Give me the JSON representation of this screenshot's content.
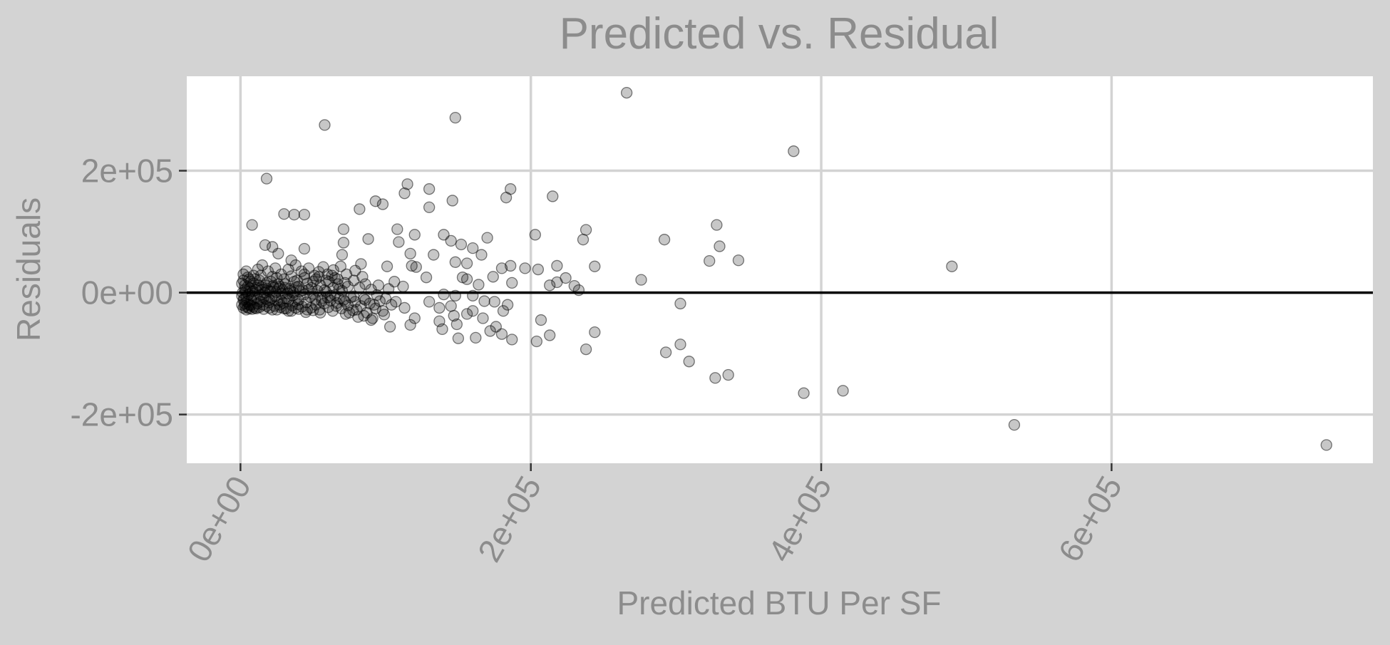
{
  "chart_data": {
    "type": "scatter",
    "title": "Predicted vs. Residual",
    "xlabel": "Predicted BTU Per SF",
    "ylabel": "Residuals",
    "xlim": [
      -37000,
      780000
    ],
    "ylim": [
      -280000,
      355000
    ],
    "x_ticks": [
      0,
      200000,
      400000,
      600000
    ],
    "x_tick_labels": [
      "0e+00",
      "2e+05",
      "4e+05",
      "6e+05"
    ],
    "y_ticks": [
      -200000,
      0,
      200000
    ],
    "y_tick_labels": [
      "-2e+05",
      "0e+00",
      "2e+05"
    ],
    "reference_line_y": 0,
    "grid": true,
    "colors": {
      "background": "#d3d3d3",
      "panel": "#ffffff",
      "grid": "#d3d3d3",
      "text": "#8c8c8c",
      "point_fill": "rgba(0,0,0,0.22)",
      "point_stroke": "rgba(0,0,0,0.5)",
      "zero_line": "#000000"
    },
    "points": [
      [
        266000,
        328000
      ],
      [
        148000,
        287000
      ],
      [
        58000,
        275000
      ],
      [
        381000,
        232000
      ],
      [
        18000,
        187000
      ],
      [
        115000,
        178000
      ],
      [
        113000,
        163000
      ],
      [
        130000,
        170000
      ],
      [
        186000,
        170000
      ],
      [
        215000,
        158000
      ],
      [
        183000,
        156000
      ],
      [
        93000,
        150000
      ],
      [
        146000,
        151000
      ],
      [
        98000,
        145000
      ],
      [
        130000,
        140000
      ],
      [
        82000,
        137000
      ],
      [
        30000,
        129000
      ],
      [
        37000,
        128000
      ],
      [
        44000,
        128000
      ],
      [
        8000,
        111000
      ],
      [
        71000,
        104000
      ],
      [
        108000,
        104000
      ],
      [
        328000,
        111000
      ],
      [
        203000,
        95000
      ],
      [
        120000,
        95000
      ],
      [
        140000,
        95000
      ],
      [
        145000,
        85000
      ],
      [
        170000,
        90000
      ],
      [
        236000,
        87000
      ],
      [
        238000,
        103000
      ],
      [
        292000,
        87000
      ],
      [
        152000,
        79000
      ],
      [
        160000,
        73000
      ],
      [
        17000,
        78000
      ],
      [
        22000,
        75000
      ],
      [
        44000,
        72000
      ],
      [
        71000,
        82000
      ],
      [
        88000,
        88000
      ],
      [
        109000,
        83000
      ],
      [
        330000,
        76000
      ],
      [
        26000,
        64000
      ],
      [
        70000,
        62000
      ],
      [
        117000,
        64000
      ],
      [
        133000,
        62000
      ],
      [
        166000,
        62000
      ],
      [
        244000,
        43000
      ],
      [
        35000,
        53000
      ],
      [
        69000,
        43000
      ],
      [
        83000,
        47000
      ],
      [
        101000,
        43000
      ],
      [
        118000,
        44000
      ],
      [
        148000,
        50000
      ],
      [
        156000,
        48000
      ],
      [
        186000,
        44000
      ],
      [
        218000,
        44000
      ],
      [
        343000,
        53000
      ],
      [
        323000,
        52000
      ],
      [
        490000,
        43000
      ],
      [
        121000,
        42000
      ],
      [
        196000,
        40000
      ],
      [
        205000,
        38000
      ],
      [
        180000,
        40000
      ],
      [
        64000,
        37000
      ],
      [
        54000,
        34000
      ],
      [
        44000,
        30000
      ],
      [
        153000,
        25000
      ],
      [
        174000,
        26000
      ],
      [
        224000,
        24000
      ],
      [
        276000,
        21000
      ],
      [
        128000,
        25000
      ],
      [
        187000,
        16000
      ],
      [
        213000,
        12000
      ],
      [
        218000,
        17000
      ],
      [
        230000,
        11000
      ],
      [
        233000,
        4000
      ],
      [
        164000,
        13000
      ],
      [
        112000,
        10000
      ],
      [
        156000,
        22000
      ],
      [
        140000,
        -3000
      ],
      [
        130000,
        -15000
      ],
      [
        148000,
        -5000
      ],
      [
        160000,
        -5000
      ],
      [
        168000,
        -14000
      ],
      [
        145000,
        -22000
      ],
      [
        137000,
        -25000
      ],
      [
        160000,
        -30000
      ],
      [
        181000,
        -30000
      ],
      [
        175000,
        -15000
      ],
      [
        184000,
        -20000
      ],
      [
        303000,
        -18000
      ],
      [
        167000,
        -42000
      ],
      [
        147000,
        -38000
      ],
      [
        156000,
        -35000
      ],
      [
        137000,
        -47000
      ],
      [
        120000,
        -42000
      ],
      [
        113000,
        -25000
      ],
      [
        107000,
        -15000
      ],
      [
        103000,
        -56000
      ],
      [
        117000,
        -53000
      ],
      [
        139000,
        -60000
      ],
      [
        149000,
        -52000
      ],
      [
        207000,
        -45000
      ],
      [
        176000,
        -56000
      ],
      [
        180000,
        -68000
      ],
      [
        172000,
        -63000
      ],
      [
        162000,
        -74000
      ],
      [
        150000,
        -75000
      ],
      [
        187000,
        -77000
      ],
      [
        204000,
        -80000
      ],
      [
        213000,
        -70000
      ],
      [
        244000,
        -65000
      ],
      [
        238000,
        -93000
      ],
      [
        303000,
        -85000
      ],
      [
        293000,
        -98000
      ],
      [
        309000,
        -113000
      ],
      [
        327000,
        -140000
      ],
      [
        336000,
        -135000
      ],
      [
        388000,
        -165000
      ],
      [
        415000,
        -161000
      ],
      [
        533000,
        -217000
      ],
      [
        748000,
        -250000
      ],
      [
        90000,
        -45000
      ],
      [
        85000,
        -38000
      ],
      [
        80000,
        -28000
      ],
      [
        75000,
        -33000
      ],
      [
        66000,
        -22000
      ],
      [
        92000,
        -20000
      ],
      [
        98000,
        -30000
      ],
      [
        72000,
        -15000
      ],
      [
        60000,
        -8000
      ],
      [
        52000,
        -20000
      ],
      [
        46000,
        -28000
      ],
      [
        38000,
        -25000
      ],
      [
        33000,
        -30000
      ],
      [
        27000,
        -20000
      ],
      [
        22000,
        -28000
      ],
      [
        18000,
        -22000
      ],
      [
        14000,
        -15000
      ],
      [
        10000,
        -25000
      ],
      [
        6000,
        -20000
      ],
      [
        3000,
        -18000
      ],
      [
        2000,
        -12000
      ],
      [
        4000,
        -8000
      ],
      [
        8000,
        -5000
      ],
      [
        12000,
        -10000
      ],
      [
        16000,
        -8000
      ],
      [
        20000,
        -12000
      ],
      [
        24000,
        -6000
      ],
      [
        28000,
        -14000
      ],
      [
        32000,
        -10000
      ],
      [
        36000,
        -5000
      ],
      [
        40000,
        -12000
      ],
      [
        48000,
        -7000
      ],
      [
        56000,
        -14000
      ],
      [
        62000,
        -5000
      ],
      [
        68000,
        -10000
      ],
      [
        78000,
        -6000
      ],
      [
        86000,
        -12000
      ],
      [
        94000,
        -4000
      ],
      [
        100000,
        -10000
      ],
      [
        3000,
        5000
      ],
      [
        5000,
        10000
      ],
      [
        7000,
        3000
      ],
      [
        9000,
        15000
      ],
      [
        11000,
        8000
      ],
      [
        13000,
        20000
      ],
      [
        15000,
        5000
      ],
      [
        17000,
        12000
      ],
      [
        19000,
        3000
      ],
      [
        21000,
        18000
      ],
      [
        23000,
        8000
      ],
      [
        25000,
        24000
      ],
      [
        27000,
        10000
      ],
      [
        29000,
        4000
      ],
      [
        31000,
        14000
      ],
      [
        34000,
        6000
      ],
      [
        37000,
        18000
      ],
      [
        40000,
        10000
      ],
      [
        43000,
        4000
      ],
      [
        46000,
        15000
      ],
      [
        49000,
        8000
      ],
      [
        52000,
        22000
      ],
      [
        55000,
        12000
      ],
      [
        58000,
        4000
      ],
      [
        61000,
        18000
      ],
      [
        64000,
        8000
      ],
      [
        67000,
        14000
      ],
      [
        70000,
        3000
      ],
      [
        74000,
        10000
      ],
      [
        78000,
        20000
      ],
      [
        82000,
        8000
      ],
      [
        86000,
        14000
      ],
      [
        90000,
        5000
      ],
      [
        95000,
        12000
      ],
      [
        102000,
        6000
      ],
      [
        106000,
        18000
      ],
      [
        2000,
        30000
      ],
      [
        4000,
        35000
      ],
      [
        6000,
        22000
      ],
      [
        9000,
        28000
      ],
      [
        12000,
        38000
      ],
      [
        15000,
        45000
      ],
      [
        19000,
        35000
      ],
      [
        24000,
        40000
      ],
      [
        28000,
        30000
      ],
      [
        33000,
        38000
      ],
      [
        38000,
        45000
      ],
      [
        42000,
        35000
      ],
      [
        47000,
        40000
      ],
      [
        51000,
        28000
      ],
      [
        57000,
        42000
      ],
      [
        60000,
        30000
      ],
      [
        65000,
        24000
      ],
      [
        73000,
        30000
      ],
      [
        79000,
        36000
      ],
      [
        84000,
        26000
      ],
      [
        1000,
        -5000
      ],
      [
        1500,
        0
      ],
      [
        2500,
        -10000
      ],
      [
        3500,
        2000
      ],
      [
        4500,
        -15000
      ],
      [
        5500,
        -3000
      ],
      [
        6500,
        7000
      ],
      [
        7500,
        -12000
      ],
      [
        8500,
        2000
      ],
      [
        9500,
        -8000
      ],
      [
        10500,
        4000
      ],
      [
        11500,
        -18000
      ],
      [
        12500,
        12000
      ],
      [
        13500,
        -4000
      ],
      [
        14500,
        9000
      ],
      [
        15500,
        -20000
      ],
      [
        16500,
        0
      ],
      [
        17500,
        -10000
      ],
      [
        18500,
        6000
      ],
      [
        19500,
        -16000
      ],
      [
        20500,
        2000
      ],
      [
        21500,
        -9000
      ],
      [
        22500,
        11000
      ],
      [
        23500,
        -22000
      ],
      [
        24500,
        1000
      ],
      [
        25500,
        -13000
      ],
      [
        26500,
        6000
      ],
      [
        27500,
        -24000
      ],
      [
        28500,
        -2000
      ],
      [
        29500,
        -17000
      ],
      [
        30500,
        8000
      ],
      [
        31500,
        -26000
      ],
      [
        32500,
        -1000
      ],
      [
        33500,
        -11000
      ],
      [
        34500,
        3000
      ],
      [
        35500,
        -21000
      ],
      [
        36500,
        0
      ],
      [
        37500,
        -14000
      ],
      [
        38500,
        9000
      ],
      [
        39500,
        -19000
      ],
      [
        41000,
        2000
      ],
      [
        42500,
        -23000
      ],
      [
        44000,
        -3000
      ],
      [
        45500,
        -16000
      ],
      [
        47000,
        5000
      ],
      [
        48500,
        -25000
      ],
      [
        50000,
        -2000
      ],
      [
        51500,
        -11000
      ],
      [
        53000,
        3000
      ],
      [
        54500,
        -28000
      ],
      [
        56000,
        -9000
      ],
      [
        57500,
        -18000
      ],
      [
        59000,
        1000
      ],
      [
        60500,
        -24000
      ],
      [
        62000,
        -13000
      ],
      [
        63500,
        -30000
      ],
      [
        65000,
        -4000
      ],
      [
        66500,
        -17000
      ],
      [
        68000,
        6000
      ],
      [
        69500,
        -26000
      ],
      [
        71000,
        -12000
      ],
      [
        72500,
        -35000
      ],
      [
        74000,
        -21000
      ],
      [
        76000,
        -8000
      ],
      [
        77500,
        -29000
      ],
      [
        79000,
        -15000
      ],
      [
        81000,
        -40000
      ],
      [
        83000,
        -22000
      ],
      [
        85000,
        -10000
      ],
      [
        87000,
        -33000
      ],
      [
        89000,
        -18000
      ],
      [
        91000,
        -42000
      ],
      [
        93000,
        -26000
      ],
      [
        96000,
        -14000
      ],
      [
        99000,
        -36000
      ],
      [
        104000,
        -20000
      ],
      [
        1000,
        15000
      ],
      [
        2000,
        20000
      ],
      [
        3000,
        12000
      ],
      [
        5000,
        25000
      ],
      [
        7000,
        18000
      ],
      [
        10000,
        22000
      ],
      [
        14000,
        28000
      ],
      [
        18000,
        16000
      ],
      [
        22000,
        26000
      ],
      [
        26000,
        14000
      ],
      [
        30000,
        22000
      ],
      [
        35000,
        27000
      ],
      [
        39000,
        20000
      ],
      [
        44000,
        24000
      ],
      [
        50000,
        18000
      ],
      [
        54000,
        26000
      ],
      [
        59000,
        20000
      ],
      [
        63000,
        28000
      ],
      [
        67000,
        22000
      ],
      [
        72000,
        16000
      ],
      [
        1000,
        -20000
      ],
      [
        2000,
        -25000
      ],
      [
        3000,
        -22000
      ],
      [
        4000,
        -28000
      ],
      [
        5000,
        -24000
      ],
      [
        6000,
        -26000
      ],
      [
        7000,
        -21000
      ],
      [
        8000,
        -27000
      ],
      [
        9000,
        -23000
      ],
      [
        11000,
        -26000
      ],
      [
        13000,
        -24000
      ],
      [
        16000,
        -27000
      ],
      [
        20000,
        -25000
      ],
      [
        25000,
        -28000
      ],
      [
        30000,
        -26000
      ],
      [
        35000,
        -30000
      ],
      [
        40000,
        -27000
      ],
      [
        45000,
        -32000
      ],
      [
        50000,
        -29000
      ],
      [
        55000,
        -33000
      ]
    ]
  }
}
